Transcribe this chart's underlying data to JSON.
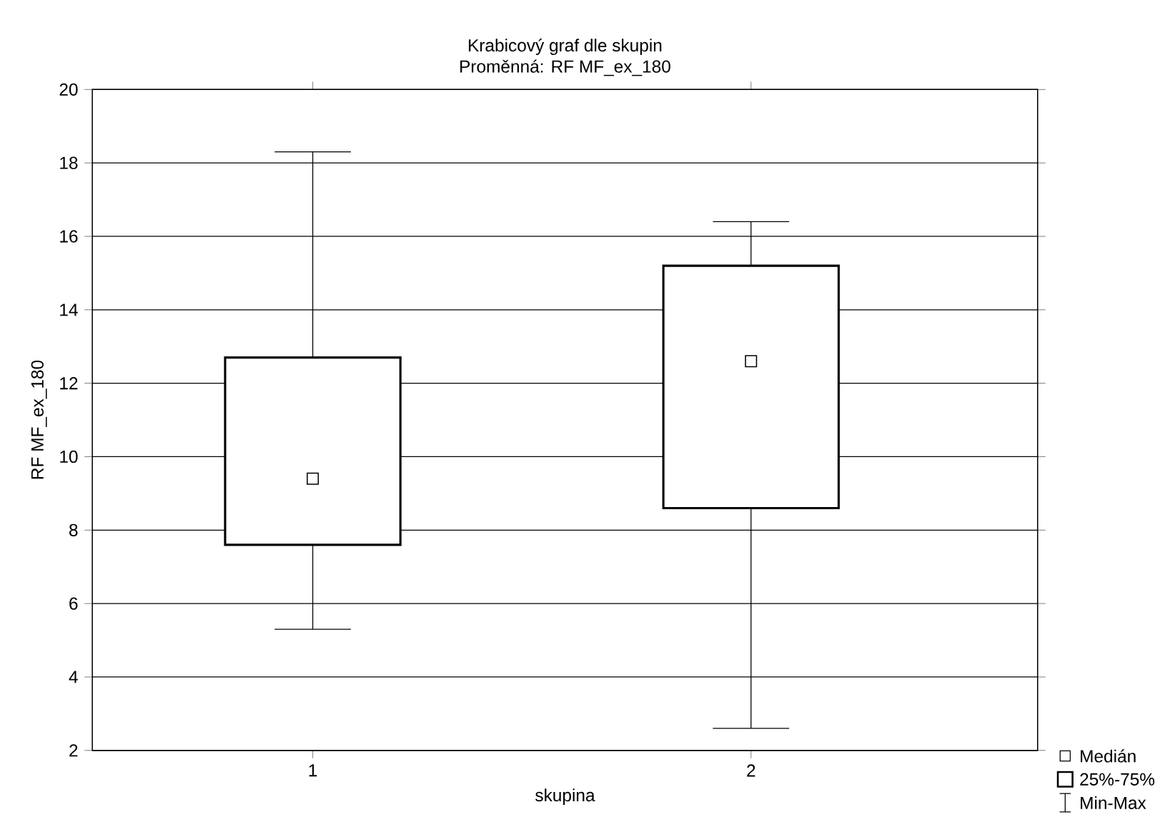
{
  "chart_data": {
    "type": "box",
    "title": "Krabicový graf dle skupin",
    "subtitle": "Proměnná: RF MF_ex_180",
    "xlabel": "skupina",
    "ylabel": "RF MF_ex_180",
    "categories": [
      "1",
      "2"
    ],
    "boxes": [
      {
        "low": 5.3,
        "q1": 7.6,
        "median": 9.4,
        "q3": 12.7,
        "high": 18.3
      },
      {
        "low": 2.6,
        "q1": 8.6,
        "median": 12.6,
        "q3": 15.2,
        "high": 16.4
      }
    ],
    "ylim": [
      2,
      20
    ],
    "yticks": [
      2,
      4,
      6,
      8,
      10,
      12,
      14,
      16,
      18,
      20
    ],
    "grid": "y",
    "marker": "square",
    "annotations": [
      "Medián",
      "25%-75%",
      "Min-Max"
    ]
  }
}
